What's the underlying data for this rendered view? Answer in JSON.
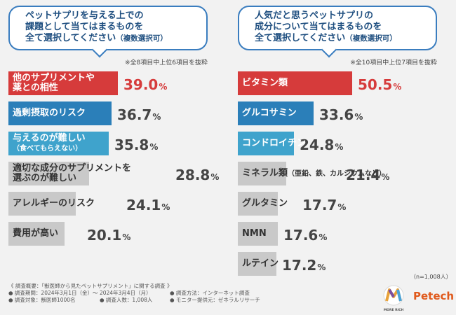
{
  "left": {
    "question": {
      "lines": [
        "ペットサプリを与える上での",
        "課題として当てはまるものを"
      ],
      "last_line": "全て選択してください",
      "suffix": "（複数選択可）"
    },
    "note": "※全8項目中上位6項目を抜粋",
    "chart_data": {
      "type": "bar",
      "orientation": "horizontal",
      "categories": [
        "他のサプリメントや薬との相性",
        "過剰摂取のリスク",
        "与えるのが難しい（食べてもらえない）",
        "適切な成分のサプリメントを選ぶのが難しい",
        "アレルギーのリスク",
        "費用が高い"
      ],
      "values": [
        39.0,
        36.7,
        35.8,
        28.8,
        24.1,
        20.1
      ],
      "unit": "%",
      "xlim": [
        0,
        50
      ]
    },
    "bars": [
      {
        "label_lines": [
          "他のサプリメントや",
          "薬との相性"
        ],
        "sub": "",
        "value": "39.0",
        "unit": "%",
        "color": "#d63b3b",
        "text_color": "#ffffff"
      },
      {
        "label_lines": [
          "過剰摂取のリスク"
        ],
        "sub": "",
        "value": "36.7",
        "unit": "%",
        "color": "#2b7fb9",
        "text_color": "#ffffff"
      },
      {
        "label_lines": [
          "与えるのが難しい"
        ],
        "sub": "（食べてもらえない）",
        "value": "35.8",
        "unit": "%",
        "color": "#3fa3cc",
        "text_color": "#ffffff"
      },
      {
        "label_lines": [
          "適切な成分のサプリメントを",
          "選ぶのが難しい"
        ],
        "sub": "",
        "value": "28.8",
        "unit": "%",
        "color": "#c9c9c9",
        "text_color": "#333333"
      },
      {
        "label_lines": [
          "アレルギーのリスク"
        ],
        "sub": "",
        "value": "24.1",
        "unit": "%",
        "color": "#c9c9c9",
        "text_color": "#333333"
      },
      {
        "label_lines": [
          "費用が高い"
        ],
        "sub": "",
        "value": "20.1",
        "unit": "%",
        "color": "#c9c9c9",
        "text_color": "#333333"
      }
    ]
  },
  "right": {
    "question": {
      "lines": [
        "人気だと思うペットサプリの",
        "成分について当てはまるものを"
      ],
      "last_line": "全て選択してください",
      "suffix": "（複数選択可）"
    },
    "note": "※全10項目中上位7項目を抜粋",
    "chart_data": {
      "type": "bar",
      "orientation": "horizontal",
      "categories": [
        "ビタミン類",
        "グルコサミン",
        "コンドロイチン",
        "ミネラル類（亜鉛、鉄、カルシウムなど）",
        "グルタミン",
        "NMN",
        "ルテイン"
      ],
      "values": [
        50.5,
        33.6,
        24.8,
        21.4,
        17.7,
        17.6,
        17.2
      ],
      "unit": "%",
      "xlim": [
        0,
        62
      ]
    },
    "bars": [
      {
        "label_lines": [
          "ビタミン類"
        ],
        "sub": "",
        "value": "50.5",
        "unit": "%",
        "color": "#d63b3b",
        "text_color": "#ffffff"
      },
      {
        "label_lines": [
          "グルコサミン"
        ],
        "sub": "",
        "value": "33.6",
        "unit": "%",
        "color": "#2b7fb9",
        "text_color": "#ffffff"
      },
      {
        "label_lines": [
          "コンドロイチン"
        ],
        "sub": "",
        "value": "24.8",
        "unit": "%",
        "color": "#3fa3cc",
        "text_color": "#ffffff"
      },
      {
        "label_lines": [
          "ミネラル類"
        ],
        "sub": "（亜鉛、鉄、カルシウムなど）",
        "value": "21.4",
        "unit": "%",
        "color": "#c9c9c9",
        "text_color": "#333333"
      },
      {
        "label_lines": [
          "グルタミン"
        ],
        "sub": "",
        "value": "17.7",
        "unit": "%",
        "color": "#c9c9c9",
        "text_color": "#333333"
      },
      {
        "label_lines": [
          "NMN"
        ],
        "sub": "",
        "value": "17.6",
        "unit": "%",
        "color": "#c9c9c9",
        "text_color": "#333333"
      },
      {
        "label_lines": [
          "ルテイン"
        ],
        "sub": "",
        "value": "17.2",
        "unit": "%",
        "color": "#c9c9c9",
        "text_color": "#333333"
      }
    ]
  },
  "sample_size": "（n=1,008人）",
  "footer": {
    "title": "《 調査概要：「獣医師から見たペットサプリメント」に関する調査 》",
    "period": "● 調査期間：2024年3月1日（金）～ 2024年3月4日（月）",
    "method": "● 調査方法：インターネット調査",
    "target": "● 調査対象：獣医師1000名",
    "count": "● 調査人数：1,008人",
    "provider": "● モニター提供元：ゼネラルリサーチ"
  },
  "logos": {
    "moreRich": "MORE RICH",
    "petech": "Petech"
  }
}
